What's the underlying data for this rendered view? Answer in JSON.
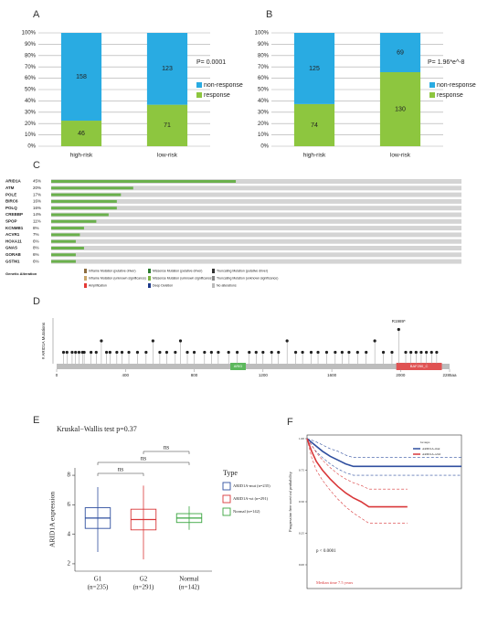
{
  "chart_data": [
    {
      "type": "stacked_percent_bar",
      "panel_label": "A",
      "categories": [
        "high-risk",
        "low-risk"
      ],
      "series": [
        {
          "name": "response",
          "color": "#8dc63f",
          "values": [
            46,
            71
          ]
        },
        {
          "name": "non-response",
          "color": "#29abe2",
          "values": [
            158,
            123
          ]
        }
      ],
      "ylim": [
        0,
        100
      ],
      "yticks": [
        {
          "value": 0,
          "label": "0%"
        },
        {
          "value": 10,
          "label": "10%"
        },
        {
          "value": 20,
          "label": "20%"
        },
        {
          "value": 30,
          "label": "30%"
        },
        {
          "value": 40,
          "label": "40%"
        },
        {
          "value": 50,
          "label": "50%"
        },
        {
          "value": 60,
          "label": "60%"
        },
        {
          "value": 70,
          "label": "70%"
        },
        {
          "value": 80,
          "label": "80%"
        },
        {
          "value": 90,
          "label": "90%"
        },
        {
          "value": 100,
          "label": "100%"
        }
      ],
      "grid": true,
      "annotation": "P= 0.0001"
    },
    {
      "type": "stacked_percent_bar",
      "panel_label": "B",
      "categories": [
        "high-risk",
        "low-risk"
      ],
      "series": [
        {
          "name": "response",
          "color": "#8dc63f",
          "values": [
            74,
            130
          ]
        },
        {
          "name": "non-response",
          "color": "#29abe2",
          "values": [
            125,
            69
          ]
        }
      ],
      "ylim": [
        0,
        100
      ],
      "yticks": [
        {
          "value": 0,
          "label": "0%"
        },
        {
          "value": 10,
          "label": "10%"
        },
        {
          "value": 20,
          "label": "20%"
        },
        {
          "value": 30,
          "label": "30%"
        },
        {
          "value": 40,
          "label": "40%"
        },
        {
          "value": 50,
          "label": "50%"
        },
        {
          "value": 60,
          "label": "60%"
        },
        {
          "value": 70,
          "label": "70%"
        },
        {
          "value": 80,
          "label": "80%"
        },
        {
          "value": 90,
          "label": "90%"
        },
        {
          "value": 100,
          "label": "100%"
        }
      ],
      "grid": true,
      "annotation": "P= 1.96*e^-8"
    },
    {
      "type": "oncoprint",
      "panel_label": "C",
      "genes": [
        "ARID1A",
        "ATM",
        "POLE",
        "BIRC6",
        "POLQ",
        "CREBBP",
        "SPOP",
        "KCNMB1",
        "ACVR1",
        "HOXA11",
        "GNAS",
        "GORAB",
        "GSTM1"
      ],
      "values": [
        45,
        20,
        17,
        16,
        16,
        14,
        11,
        8,
        7,
        6,
        8,
        6,
        6
      ],
      "value_labels": [
        "45%",
        "20%",
        "17%",
        "16%",
        "16%",
        "14%",
        "11%",
        "8%",
        "7%",
        "6%",
        "8%",
        "6%",
        "6%"
      ],
      "color": "#6ab04c",
      "legend_title": "Genetic Alteration",
      "legend_items": [
        "Inframe Mutation (putative driver)",
        "Missense Mutation (putative driver)",
        "Truncating Mutation (putative driver)",
        "Inframe Mutation (unknown significance)",
        "Missense Mutation (unknown significance)",
        "Truncating Mutation (unknown significance)",
        "Amplification",
        "Deep Deletion",
        "No alterations"
      ]
    },
    {
      "type": "lollipop",
      "panel_label": "D",
      "ylabel": "# ARID1A Mutations",
      "x": [
        40,
        60,
        90,
        110,
        130,
        150,
        160,
        200,
        230,
        260,
        290,
        310,
        350,
        380,
        420,
        470,
        520,
        560,
        600,
        640,
        690,
        720,
        760,
        800,
        860,
        900,
        940,
        1000,
        1050,
        1120,
        1160,
        1200,
        1250,
        1290,
        1340,
        1390,
        1430,
        1480,
        1520,
        1570,
        1620,
        1660,
        1700,
        1750,
        1800,
        1850,
        1900,
        1950,
        1989,
        2030,
        2060,
        2090,
        2120,
        2150,
        2180,
        2210
      ],
      "values": [
        1,
        1,
        1,
        1,
        1,
        1,
        1,
        1,
        1,
        2,
        1,
        1,
        1,
        1,
        1,
        1,
        1,
        2,
        1,
        1,
        1,
        2,
        1,
        1,
        1,
        1,
        1,
        1,
        1,
        1,
        1,
        1,
        1,
        1,
        2,
        1,
        1,
        1,
        1,
        1,
        1,
        1,
        1,
        1,
        1,
        2,
        1,
        1,
        3,
        1,
        1,
        1,
        1,
        1,
        1,
        1
      ],
      "color": "#222222",
      "ylim": [
        0,
        4
      ],
      "xlim": [
        0,
        2285
      ],
      "xticks": [
        0,
        400,
        800,
        1200,
        1600,
        2000,
        {
          "value": 2285,
          "label": "2285aa"
        }
      ],
      "domains": [
        {
          "name": "ARID",
          "start": 1010,
          "end": 1100,
          "color": "#5cb85c"
        },
        {
          "name": "BAF250_C",
          "start": 1975,
          "end": 2240,
          "color": "#e05252"
        }
      ],
      "annotation": {
        "text": "R1989*",
        "x": 1989
      }
    },
    {
      "type": "box",
      "panel_label": "E",
      "title": "Kruskal−Wallis test p=0.37",
      "ylabel": "ARID1A expression",
      "categories": [
        "G1",
        "G2",
        "Normal"
      ],
      "n_labels": [
        "(n=235)",
        "(n=291)",
        "(n=142)"
      ],
      "colors": [
        "#2f4f9f",
        "#d9383a",
        "#3aa640"
      ],
      "min": [
        2.8,
        2.3,
        4.3
      ],
      "q1": [
        4.4,
        4.3,
        4.8
      ],
      "median": [
        5.1,
        5.0,
        5.1
      ],
      "q3": [
        5.8,
        5.7,
        5.4
      ],
      "max": [
        7.2,
        7.3,
        5.9
      ],
      "ylim": [
        1.5,
        8.5
      ],
      "yticks": [
        2,
        4,
        6,
        8
      ],
      "sig_labels": [
        "ns",
        "ns",
        "ns"
      ],
      "legend_title": "Type",
      "legend_labels": [
        "ARID1A-mut (n=235)",
        "ARID1A-wt (n=291)",
        "Normal (n=142)"
      ]
    },
    {
      "type": "km",
      "panel_label": "F",
      "ylabel": "Progression free survival probability",
      "legend_title": "Groups",
      "series": [
        {
          "name": "ARID1A-mut",
          "color": "#2f4f9f",
          "x": [
            0,
            0.5,
            1,
            1.5,
            2,
            2.5,
            3,
            10
          ],
          "values": [
            1,
            0.95,
            0.9,
            0.86,
            0.83,
            0.8,
            0.78,
            0.78
          ],
          "ci_lower": [
            1,
            0.91,
            0.85,
            0.8,
            0.76,
            0.73,
            0.71,
            0.71
          ],
          "ci_upper": [
            1,
            0.98,
            0.95,
            0.92,
            0.9,
            0.87,
            0.85,
            0.85
          ]
        },
        {
          "name": "ARID1A-wild",
          "color": "#d9383a",
          "x": [
            0,
            0.3,
            0.6,
            1,
            1.5,
            2,
            2.5,
            3,
            3.5,
            4,
            6.5
          ],
          "values": [
            1,
            0.9,
            0.82,
            0.75,
            0.68,
            0.62,
            0.57,
            0.53,
            0.5,
            0.46,
            0.46
          ],
          "ci_lower": [
            1,
            0.85,
            0.75,
            0.67,
            0.59,
            0.52,
            0.46,
            0.41,
            0.37,
            0.33,
            0.33
          ],
          "ci_upper": [
            1,
            0.95,
            0.89,
            0.83,
            0.77,
            0.72,
            0.68,
            0.65,
            0.63,
            0.6,
            0.6
          ]
        }
      ],
      "xlim": [
        0,
        10
      ],
      "ylim": [
        0,
        1
      ],
      "yticks": [
        {
          "value": 0,
          "label": "0.00"
        },
        {
          "value": 0.25,
          "label": "0.25"
        },
        {
          "value": 0.5,
          "label": "0.50"
        },
        {
          "value": 0.75,
          "label": "0.75"
        },
        {
          "value": 1,
          "label": "1.00"
        }
      ],
      "pvalue": "p < 0.0001",
      "note": "Median time 7.5 years"
    }
  ]
}
